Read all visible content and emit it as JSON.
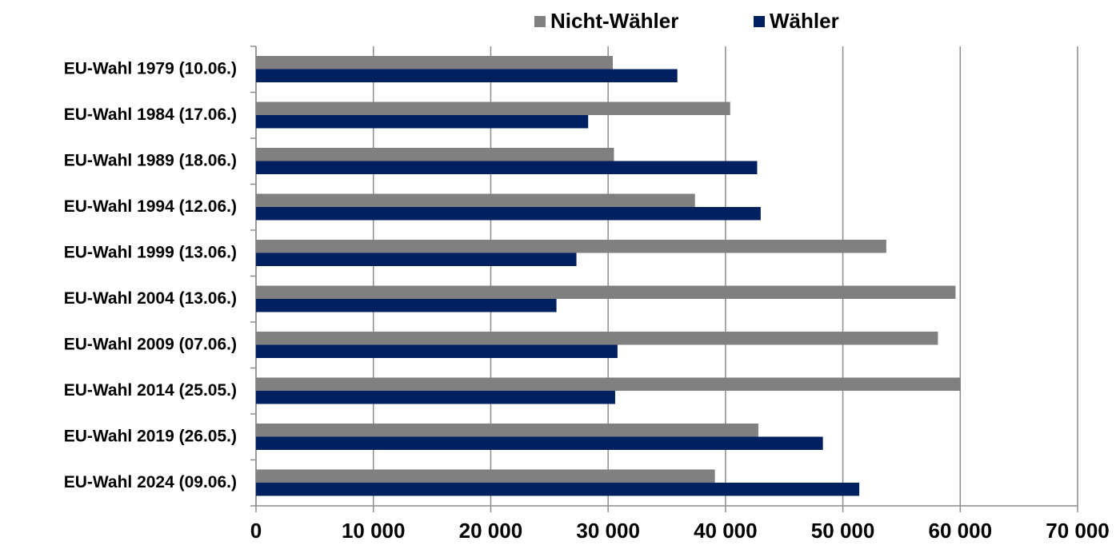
{
  "chart_data": {
    "type": "barh",
    "categories": [
      "EU-Wahl 1979 (10.06.)",
      "EU-Wahl 1984 (17.06.)",
      "EU-Wahl 1989 (18.06.)",
      "EU-Wahl 1994 (12.06.)",
      "EU-Wahl 1999 (13.06.)",
      "EU-Wahl 2004 (13.06.)",
      "EU-Wahl 2009 (07.06.)",
      "EU-Wahl 2014 (25.05.)",
      "EU-Wahl 2019 (26.05.)",
      "EU-Wahl 2024 (09.06.)"
    ],
    "series": [
      {
        "name": "Nicht-Wähler",
        "color": "#808080",
        "values": [
          30400,
          40400,
          30500,
          37400,
          53700,
          59600,
          58100,
          60000,
          42800,
          39100
        ]
      },
      {
        "name": "Wähler",
        "color": "#002060",
        "values": [
          35900,
          28300,
          42700,
          43000,
          27300,
          25600,
          30800,
          30600,
          48300,
          51400
        ]
      }
    ],
    "xlim": [
      0,
      70000
    ],
    "xticks": [
      0,
      {
        "value": 10000,
        "label": "10 000"
      },
      {
        "value": 20000,
        "label": "20 000"
      },
      {
        "value": 30000,
        "label": "30 000"
      },
      {
        "value": 40000,
        "label": "40 000"
      },
      {
        "value": 50000,
        "label": "50 000"
      },
      {
        "value": 60000,
        "label": "60 000"
      },
      {
        "value": 70000,
        "label": "70 000"
      }
    ],
    "grid": true,
    "legend": "top"
  }
}
